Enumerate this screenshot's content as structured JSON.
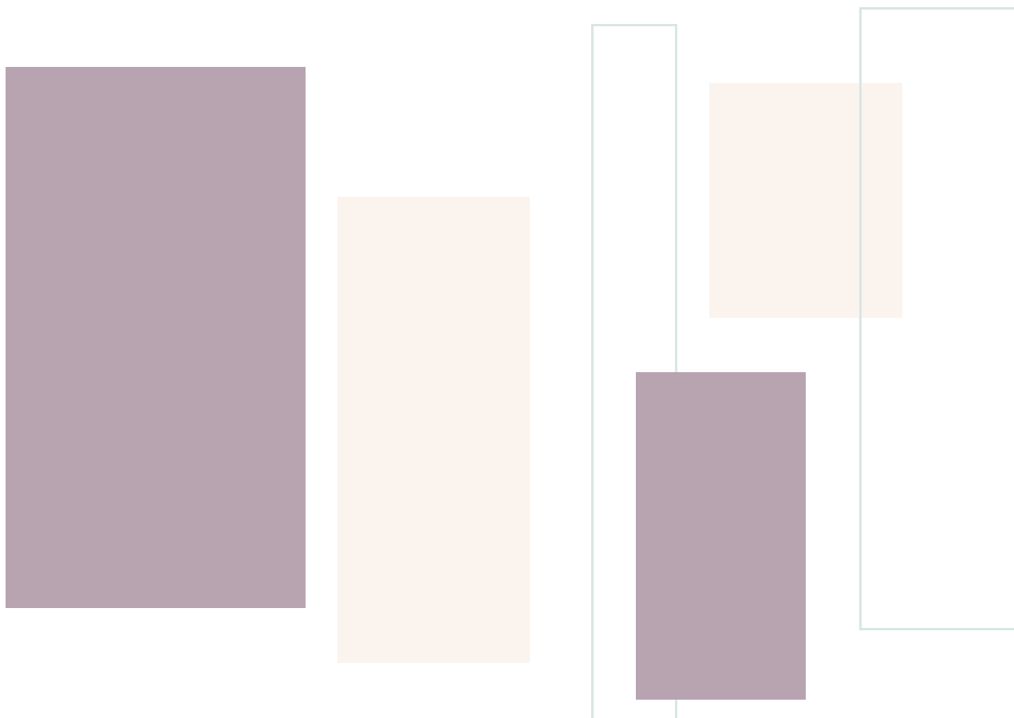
{
  "colors": {
    "background": "#ffffff",
    "mauve": "#b8a4b0",
    "cream": "#fbf3ee",
    "outline": "#d9e6e4"
  },
  "shapes": [
    {
      "id": "mauve-block-left",
      "kind": "filled",
      "color": "mauve"
    },
    {
      "id": "cream-block-middle",
      "kind": "filled",
      "color": "cream"
    },
    {
      "id": "cream-block-upper",
      "kind": "filled",
      "color": "cream"
    },
    {
      "id": "mauve-block-lower",
      "kind": "filled",
      "color": "mauve"
    },
    {
      "id": "outline-frame-narrow",
      "kind": "outline",
      "color": "outline"
    },
    {
      "id": "outline-frame-right",
      "kind": "outline",
      "color": "outline"
    }
  ]
}
